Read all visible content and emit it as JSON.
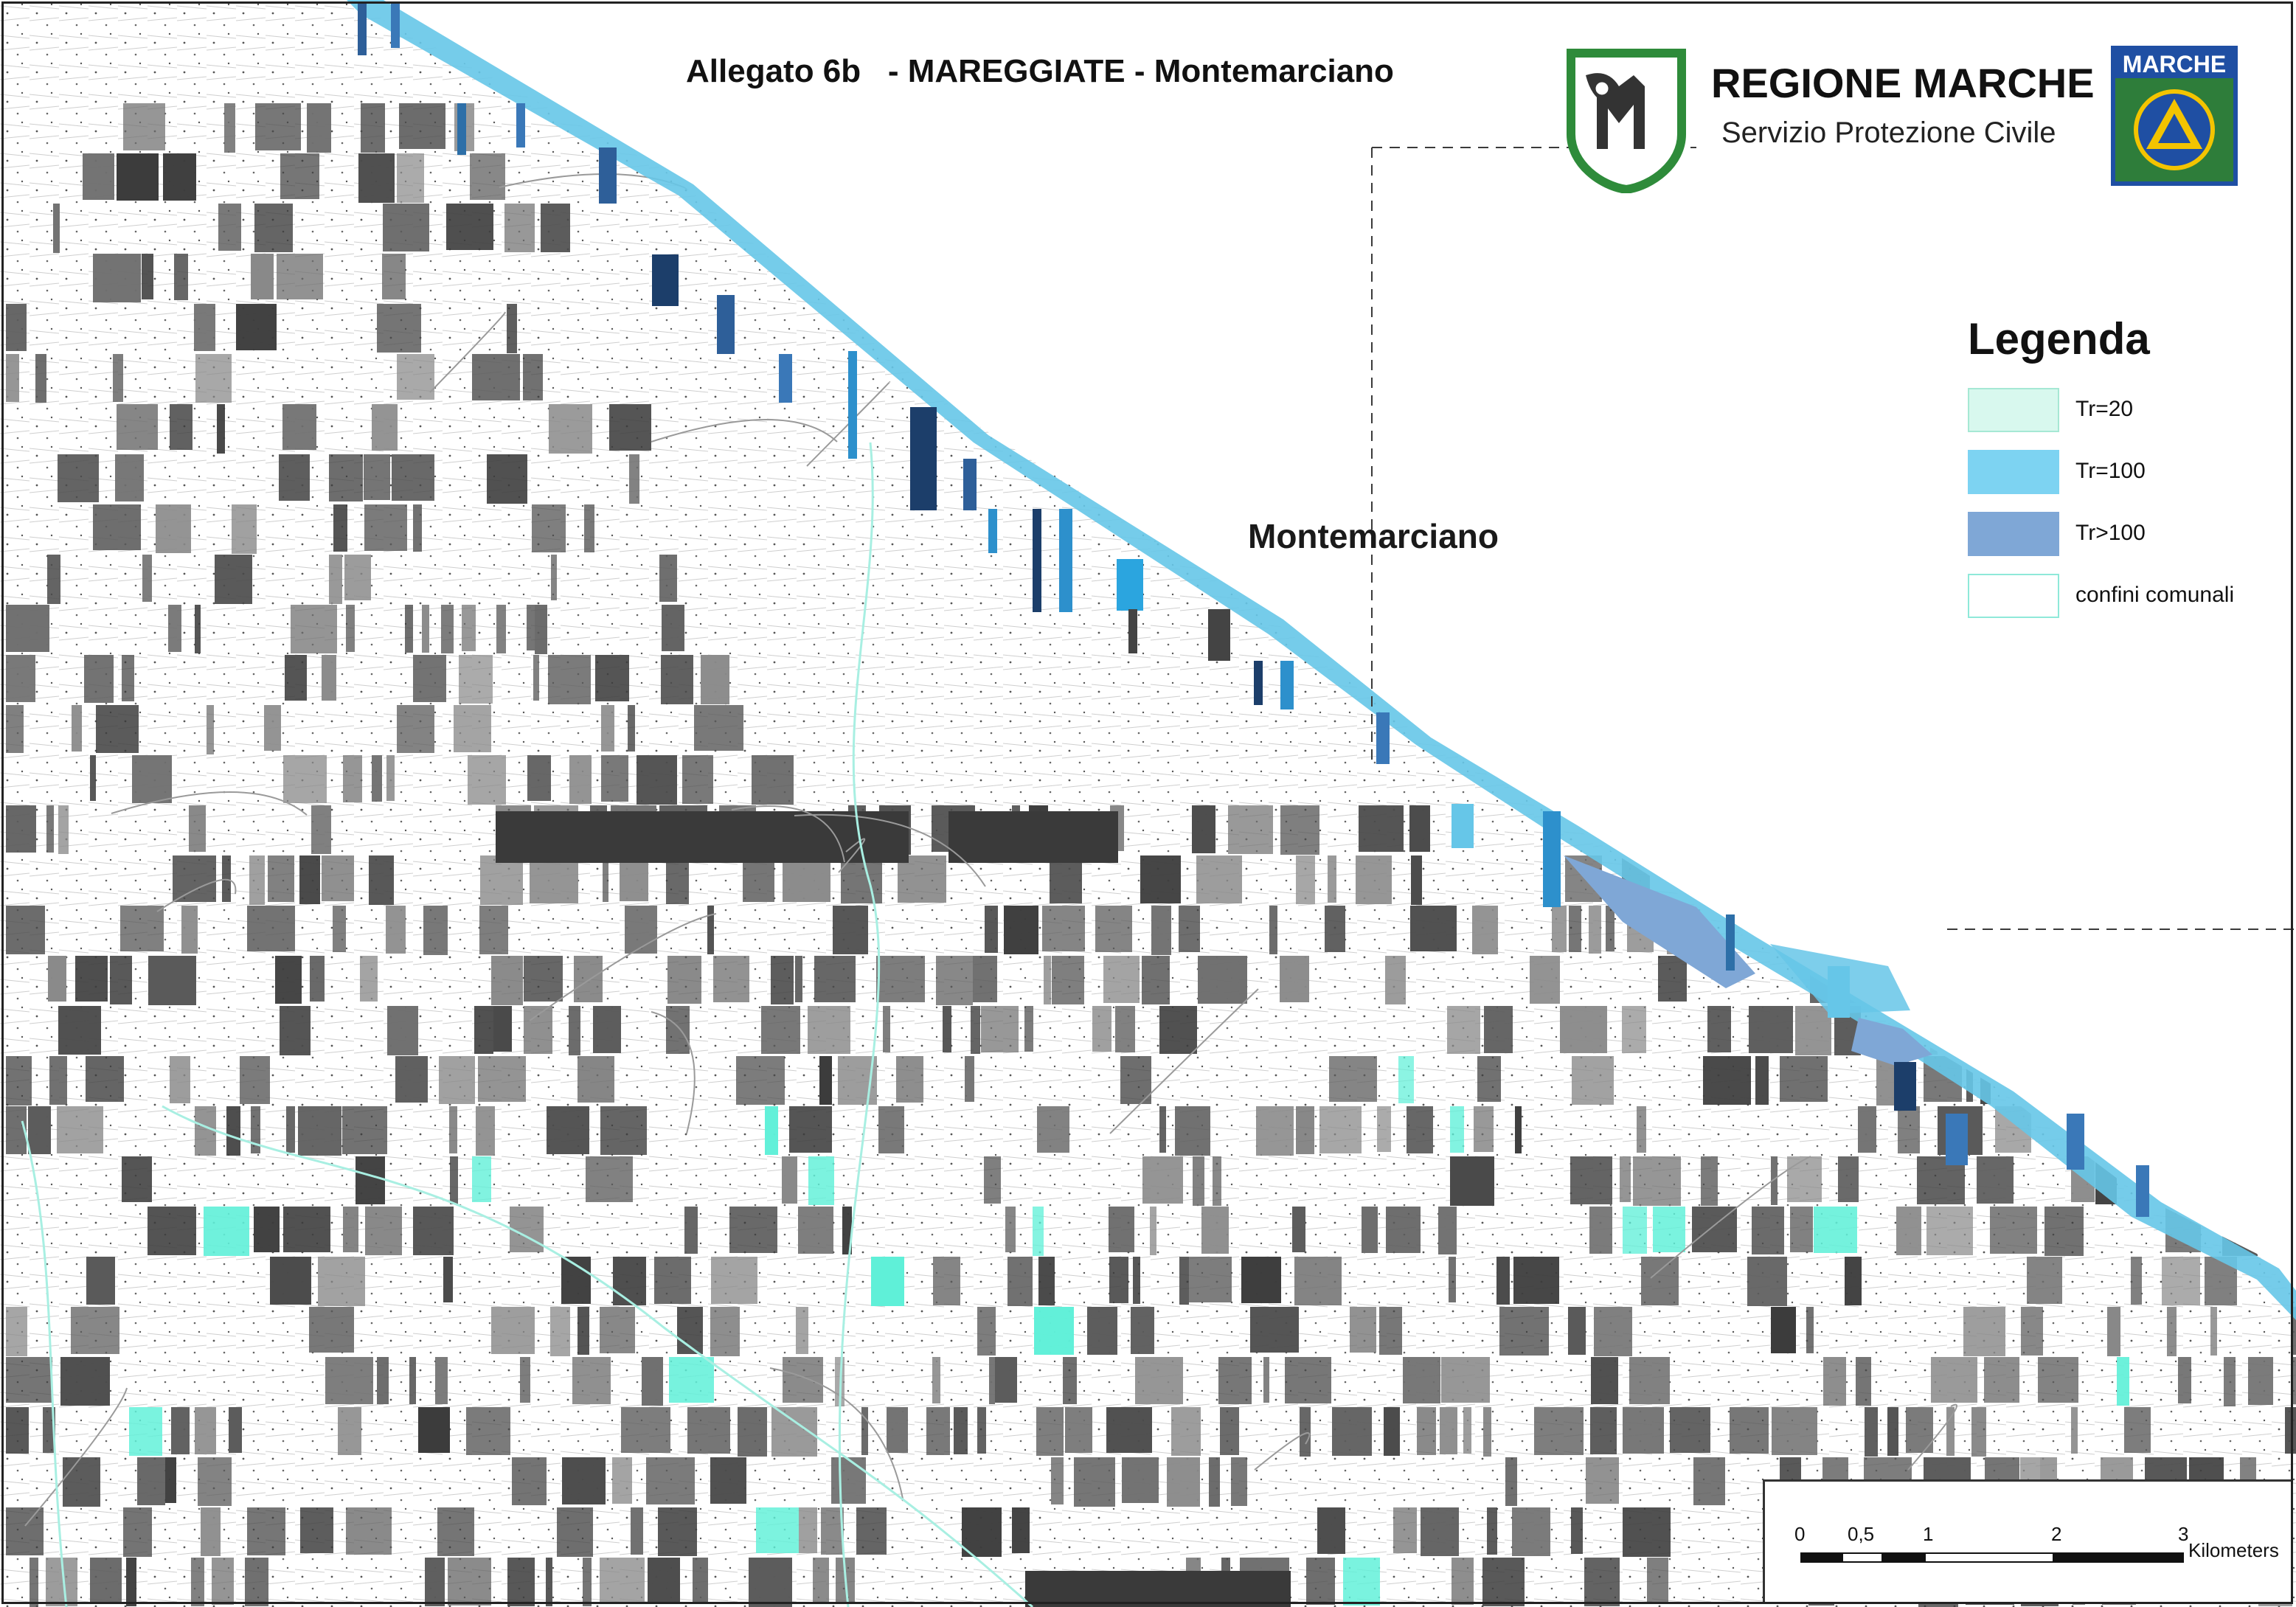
{
  "title": "Allegato 6b   - MAREGGIATE - Montemarciano",
  "place_label": "Montemarciano",
  "header": {
    "org": "REGIONE MARCHE",
    "service": "Servizio Protezione Civile",
    "badge_text": "MARCHE"
  },
  "legend": {
    "title": "Legenda",
    "items": [
      {
        "label": "Tr=20",
        "color": "#d8f8ee",
        "border": "#a6e8d4"
      },
      {
        "label": "Tr=100",
        "color": "#7dd3f2",
        "border": "#7dd3f2"
      },
      {
        "label": "Tr>100",
        "color": "#7fa7d6",
        "border": "#7fa7d6"
      },
      {
        "label": "confini comunali",
        "color": "#ffffff",
        "border": "#8fe9d9"
      }
    ]
  },
  "scale": {
    "ticks": [
      "0",
      "0,5",
      "1",
      "2",
      "3"
    ],
    "unit": "Kilometers"
  },
  "colors": {
    "sea": "#ffffff",
    "coast_band": "#66c6e8",
    "river": "#a8efe2",
    "dark_raster": "#444444",
    "mid_raster": "#777777",
    "cyan_patch": "#5ff0d8"
  },
  "icons": {
    "regione_logo": "regione-marche-logo-icon",
    "protezione_civile_logo": "protezione-civile-badge-icon"
  }
}
